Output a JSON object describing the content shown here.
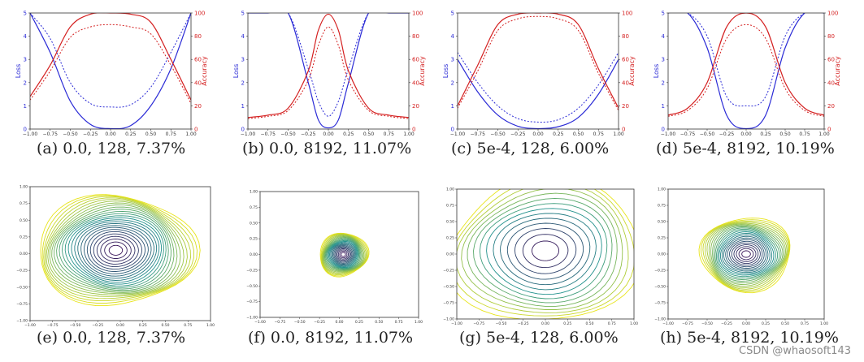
{
  "watermark": "CSDN @whaosoft143",
  "colors": {
    "loss": "#2b2bd6",
    "accuracy": "#d42020",
    "contour_low": "#3b0a55",
    "contour_mid": "#21918c",
    "contour_high": "#e8e419"
  },
  "chart_data": [
    {
      "type": "line",
      "caption": "(a) 0.0, 128, 7.37%",
      "xlabel": "",
      "ylabel": "Loss",
      "y2label": "Accuracy",
      "xlim": [
        -1.0,
        1.0
      ],
      "ylim": [
        0,
        5
      ],
      "y2lim": [
        0,
        100
      ],
      "xticks": [
        "−1.00",
        "−0.75",
        "−0.50",
        "−0.25",
        "0.00",
        "0.25",
        "0.50",
        "0.75",
        "1.00"
      ],
      "yticks": [
        "0",
        "1",
        "2",
        "3",
        "4",
        "5"
      ],
      "y2ticks": [
        "0",
        "20",
        "40",
        "60",
        "80",
        "100"
      ],
      "x": [
        -1.0,
        -0.75,
        -0.5,
        -0.25,
        0.0,
        0.25,
        0.5,
        0.75,
        1.0
      ],
      "series": [
        {
          "name": "",
          "axis": "loss",
          "style": "solid",
          "values": [
            5.5,
            3.3,
            1.2,
            0.2,
            0.02,
            0.15,
            1.0,
            2.6,
            5.0
          ]
        },
        {
          "name": "",
          "axis": "loss",
          "style": "dotted",
          "values": [
            6.0,
            3.9,
            2.0,
            1.1,
            0.95,
            1.05,
            1.8,
            3.3,
            5.5
          ]
        },
        {
          "name": "",
          "axis": "accuracy",
          "style": "solid",
          "values": [
            28,
            55,
            88,
            99,
            100,
            99,
            92,
            60,
            25
          ]
        },
        {
          "name": "",
          "axis": "accuracy",
          "style": "dotted",
          "values": [
            25,
            50,
            79,
            88,
            90,
            88,
            82,
            55,
            22
          ]
        }
      ]
    },
    {
      "type": "line",
      "caption": "(b) 0.0, 8192, 11.07%",
      "xlabel": "",
      "ylabel": "Loss",
      "y2label": "Accuracy",
      "xlim": [
        -1.0,
        1.0
      ],
      "ylim": [
        0,
        5
      ],
      "y2lim": [
        0,
        100
      ],
      "xticks": [
        "−1.00",
        "−0.75",
        "−0.50",
        "−0.25",
        "0.00",
        "0.25",
        "0.50",
        "0.75",
        "1.00"
      ],
      "yticks": [
        "0",
        "1",
        "2",
        "3",
        "4",
        "5"
      ],
      "y2ticks": [
        "0",
        "20",
        "40",
        "60",
        "80",
        "100"
      ],
      "x": [
        -1.0,
        -0.75,
        -0.5,
        -0.25,
        -0.125,
        0.0,
        0.125,
        0.25,
        0.5,
        0.75,
        1.0
      ],
      "series": [
        {
          "name": "",
          "axis": "loss",
          "style": "solid",
          "values": [
            9.0,
            9.0,
            7.5,
            2.0,
            0.4,
            0.05,
            0.4,
            2.0,
            7.5,
            9.0,
            9.0
          ]
        },
        {
          "name": "",
          "axis": "loss",
          "style": "dotted",
          "values": [
            9.0,
            9.0,
            8.0,
            2.6,
            1.2,
            0.55,
            1.2,
            2.6,
            8.0,
            9.0,
            9.0
          ]
        },
        {
          "name": "",
          "axis": "accuracy",
          "style": "solid",
          "values": [
            10,
            12,
            18,
            50,
            85,
            99,
            85,
            50,
            18,
            12,
            10
          ]
        },
        {
          "name": "",
          "axis": "accuracy",
          "style": "dotted",
          "values": [
            9,
            11,
            16,
            42,
            72,
            88,
            72,
            42,
            16,
            11,
            9
          ]
        }
      ]
    },
    {
      "type": "line",
      "caption": "(c) 5e-4, 128, 6.00%",
      "xlabel": "",
      "ylabel": "Loss",
      "y2label": "Accuracy",
      "xlim": [
        -1.0,
        1.0
      ],
      "ylim": [
        0,
        5
      ],
      "y2lim": [
        0,
        100
      ],
      "xticks": [
        "−1.00",
        "−0.75",
        "−0.50",
        "−0.25",
        "0.00",
        "0.25",
        "0.50",
        "0.75",
        "1.00"
      ],
      "yticks": [
        "0",
        "1",
        "2",
        "3",
        "4",
        "5"
      ],
      "y2ticks": [
        "0",
        "20",
        "40",
        "60",
        "80",
        "100"
      ],
      "x": [
        -1.0,
        -0.75,
        -0.5,
        -0.25,
        0.0,
        0.25,
        0.5,
        0.75,
        1.0
      ],
      "series": [
        {
          "name": "",
          "axis": "loss",
          "style": "solid",
          "values": [
            3.0,
            1.6,
            0.6,
            0.12,
            0.02,
            0.1,
            0.5,
            1.5,
            3.0
          ]
        },
        {
          "name": "",
          "axis": "loss",
          "style": "dotted",
          "values": [
            3.3,
            2.0,
            1.0,
            0.45,
            0.3,
            0.4,
            0.9,
            1.9,
            3.3
          ]
        },
        {
          "name": "",
          "axis": "accuracy",
          "style": "solid",
          "values": [
            20,
            55,
            90,
            99,
            100,
            99,
            90,
            52,
            18
          ]
        },
        {
          "name": "",
          "axis": "accuracy",
          "style": "dotted",
          "values": [
            18,
            50,
            85,
            95,
            97,
            95,
            85,
            48,
            16
          ]
        }
      ]
    },
    {
      "type": "line",
      "caption": "(d) 5e-4, 8192, 10.19%",
      "xlabel": "",
      "ylabel": "Loss",
      "y2label": "Accuracy",
      "xlim": [
        -1.0,
        1.0
      ],
      "ylim": [
        0,
        5
      ],
      "y2lim": [
        0,
        100
      ],
      "xticks": [
        "−1.00",
        "−0.75",
        "−0.50",
        "−0.25",
        "0.00",
        "0.25",
        "0.50",
        "0.75",
        "1.00"
      ],
      "yticks": [
        "0",
        "1",
        "2",
        "3",
        "4",
        "5"
      ],
      "y2ticks": [
        "0",
        "20",
        "40",
        "60",
        "80",
        "100"
      ],
      "x": [
        -1.0,
        -0.75,
        -0.5,
        -0.25,
        0.0,
        0.25,
        0.5,
        0.75,
        1.0
      ],
      "series": [
        {
          "name": "",
          "axis": "loss",
          "style": "solid",
          "values": [
            9.0,
            9.0,
            3.5,
            0.6,
            0.02,
            0.6,
            3.5,
            9.0,
            9.0
          ]
        },
        {
          "name": "",
          "axis": "loss",
          "style": "dotted",
          "values": [
            9.0,
            9.0,
            4.0,
            1.4,
            1.0,
            1.4,
            4.0,
            9.0,
            9.0
          ]
        },
        {
          "name": "",
          "axis": "accuracy",
          "style": "solid",
          "values": [
            12,
            18,
            40,
            88,
            100,
            88,
            40,
            18,
            12
          ]
        },
        {
          "name": "",
          "axis": "accuracy",
          "style": "dotted",
          "values": [
            11,
            16,
            35,
            78,
            90,
            78,
            35,
            16,
            11
          ]
        }
      ]
    },
    {
      "type": "contour",
      "caption": "(e) 0.0, 128, 7.37%",
      "xlim": [
        -1.0,
        1.0
      ],
      "ylim": [
        -1.0,
        1.0
      ],
      "xticks": [
        "−1.00",
        "−0.75",
        "−0.50",
        "−0.25",
        "0.00",
        "0.25",
        "0.50",
        "0.75",
        "1.00"
      ],
      "yticks": [
        "1.00",
        "0.75",
        "0.50",
        "0.25",
        "0.00",
        "−0.25",
        "−0.50",
        "−0.75",
        "−1.00"
      ],
      "center": [
        -0.05,
        0.05
      ],
      "spread": [
        0.85,
        0.85
      ],
      "levels": 26
    },
    {
      "type": "contour",
      "caption": "(f) 0.0, 8192, 11.07%",
      "xlim": [
        -1.0,
        1.0
      ],
      "ylim": [
        -1.0,
        1.0
      ],
      "xticks": [
        "−1.00",
        "−0.75",
        "−0.50",
        "−0.25",
        "0.00",
        "0.25",
        "0.50",
        "0.75",
        "1.00"
      ],
      "yticks": [
        "1.00",
        "0.75",
        "0.50",
        "0.25",
        "0.00",
        "−0.25",
        "−0.50",
        "−0.75",
        "−1.00"
      ],
      "center": [
        0.05,
        0.0
      ],
      "spread": [
        0.3,
        0.35
      ],
      "levels": 24
    },
    {
      "type": "contour",
      "caption": "(g) 5e-4, 128, 6.00%",
      "xlim": [
        -1.0,
        1.0
      ],
      "ylim": [
        -1.0,
        1.0
      ],
      "xticks": [
        "−1.00",
        "−0.75",
        "−0.50",
        "−0.25",
        "0.00",
        "0.25",
        "0.50",
        "0.75",
        "1.00"
      ],
      "yticks": [
        "1.00",
        "0.75",
        "0.50",
        "0.25",
        "0.00",
        "−0.25",
        "−0.50",
        "−0.75",
        "−1.00"
      ],
      "center": [
        0.0,
        0.05
      ],
      "spread": [
        1.1,
        1.1
      ],
      "levels": 14
    },
    {
      "type": "contour",
      "caption": "(h) 5e-4, 8192, 10.19%",
      "xlim": [
        -1.0,
        1.0
      ],
      "ylim": [
        -1.0,
        1.0
      ],
      "xticks": [
        "−1.00",
        "−0.75",
        "−0.50",
        "−0.25",
        "0.00",
        "0.25",
        "0.50",
        "0.75",
        "1.00"
      ],
      "yticks": [
        "1.00",
        "0.75",
        "0.50",
        "0.25",
        "0.00",
        "−0.25",
        "−0.50",
        "−0.75",
        "−1.00"
      ],
      "center": [
        0.0,
        0.0
      ],
      "spread": [
        0.6,
        0.55
      ],
      "levels": 24
    }
  ]
}
